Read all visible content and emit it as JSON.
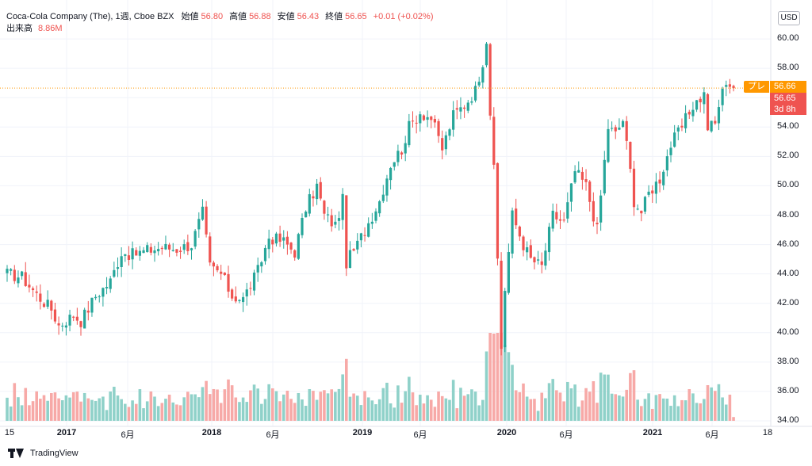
{
  "header": {
    "symbol_line": "Coca-Cola Company (The), 1週, Cboe BZX",
    "open_label": "始値",
    "open_value": "56.80",
    "high_label": "高値",
    "high_value": "56.88",
    "low_label": "安値",
    "low_value": "56.43",
    "close_label": "終値",
    "close_value": "56.65",
    "change": "+0.01 (+0.02%)",
    "volume_label": "出来高",
    "volume_value": "8.86M"
  },
  "currency": "USD",
  "price_labels": {
    "pre_tag": "プレ",
    "pre_price": "56.66",
    "last_price": "56.65",
    "countdown": "3d 8h"
  },
  "footer": {
    "brand": "TradingView"
  },
  "colors": {
    "up": "#26a69a",
    "down": "#ef5350",
    "up_volume": "#8fd1c9",
    "down_volume": "#f7a9a7",
    "accent": "#ff9800"
  },
  "chart_data": {
    "type": "candlestick",
    "interval": "1週",
    "ylim": [
      34,
      62
    ],
    "y_ticks": [
      "60.00",
      "58.00",
      "56.00",
      "54.00",
      "52.00",
      "50.00",
      "48.00",
      "46.00",
      "44.00",
      "42.00",
      "40.00",
      "38.00",
      "36.00",
      "34.00"
    ],
    "x_ticks": [
      {
        "label": "15",
        "bold": false
      },
      {
        "label": "2017",
        "bold": true
      },
      {
        "label": "6月",
        "bold": false
      },
      {
        "label": "2018",
        "bold": true
      },
      {
        "label": "6月",
        "bold": false
      },
      {
        "label": "2019",
        "bold": true
      },
      {
        "label": "6月",
        "bold": false
      },
      {
        "label": "2020",
        "bold": true
      },
      {
        "label": "6月",
        "bold": false
      },
      {
        "label": "2021",
        "bold": true
      },
      {
        "label": "6月",
        "bold": false
      },
      {
        "label": "18",
        "bold": false
      }
    ],
    "close_anchors": [
      [
        0,
        44.0
      ],
      [
        4,
        43.8
      ],
      [
        8,
        42.6
      ],
      [
        12,
        41.6
      ],
      [
        14,
        40.5
      ],
      [
        18,
        41.2
      ],
      [
        20,
        40.8
      ],
      [
        24,
        42.5
      ],
      [
        28,
        43.5
      ],
      [
        31,
        45.5
      ],
      [
        34,
        45.3
      ],
      [
        38,
        45.6
      ],
      [
        42,
        45.8
      ],
      [
        46,
        45.7
      ],
      [
        50,
        46.0
      ],
      [
        53,
        48.2
      ],
      [
        55,
        44.5
      ],
      [
        58,
        44.0
      ],
      [
        61,
        42.5
      ],
      [
        64,
        42.3
      ],
      [
        68,
        44.2
      ],
      [
        71,
        46.5
      ],
      [
        75,
        46.2
      ],
      [
        78,
        45.5
      ],
      [
        81,
        48.5
      ],
      [
        84,
        50.0
      ],
      [
        86,
        48.0
      ],
      [
        89,
        47.3
      ],
      [
        91,
        49.0
      ],
      [
        92,
        44.8
      ],
      [
        95,
        46.0
      ],
      [
        98,
        47.5
      ],
      [
        101,
        49.0
      ],
      [
        104,
        51.5
      ],
      [
        107,
        52.5
      ],
      [
        109,
        54.0
      ],
      [
        112,
        55.0
      ],
      [
        115,
        54.6
      ],
      [
        118,
        52.5
      ],
      [
        121,
        54.8
      ],
      [
        124,
        55.5
      ],
      [
        127,
        56.5
      ],
      [
        129,
        58.5
      ],
      [
        130,
        60.0
      ],
      [
        131,
        55.0
      ],
      [
        132,
        51.0
      ],
      [
        133,
        45.0
      ],
      [
        134,
        39.0
      ],
      [
        135,
        43.0
      ],
      [
        137,
        48.0
      ],
      [
        140,
        46.0
      ],
      [
        142,
        45.0
      ],
      [
        145,
        44.5
      ],
      [
        148,
        48.0
      ],
      [
        151,
        47.5
      ],
      [
        154,
        51.0
      ],
      [
        157,
        50.0
      ],
      [
        160,
        47.0
      ],
      [
        163,
        54.0
      ],
      [
        165,
        53.5
      ],
      [
        167,
        54.5
      ],
      [
        169,
        51.0
      ],
      [
        170,
        49.0
      ],
      [
        172,
        48.2
      ],
      [
        174,
        49.5
      ],
      [
        177,
        50.5
      ],
      [
        180,
        52.8
      ],
      [
        183,
        54.0
      ],
      [
        186,
        55.5
      ],
      [
        189,
        56.2
      ],
      [
        190,
        54.0
      ],
      [
        192,
        54.2
      ],
      [
        193,
        55.5
      ],
      [
        195,
        57.2
      ],
      [
        197,
        56.65
      ]
    ],
    "volume_range_millions": [
      8,
      28
    ],
    "last_bar": {
      "open": 56.8,
      "high": 56.88,
      "low": 56.43,
      "close": 56.65,
      "volume": "8.86M"
    }
  }
}
